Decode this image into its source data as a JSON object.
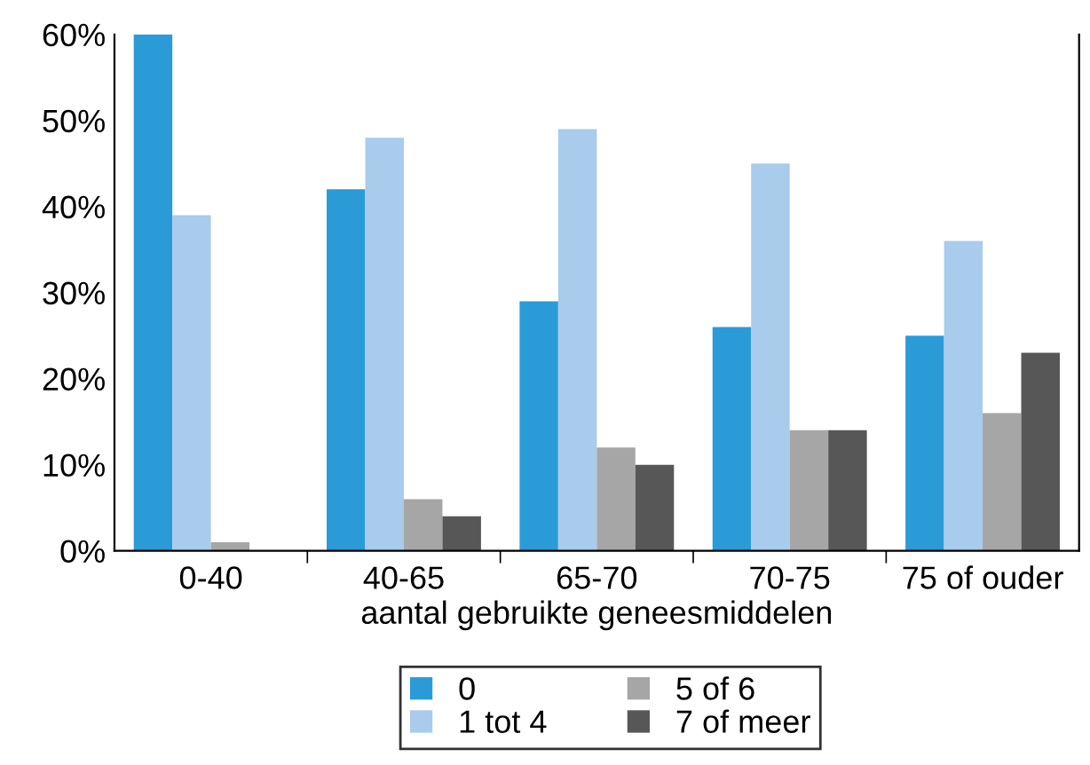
{
  "chart_data": {
    "type": "bar",
    "xlabel": "aantal gebruikte geneesmiddelen",
    "categories": [
      "0-40",
      "40-65",
      "65-70",
      "70-75",
      "75 of ouder"
    ],
    "series": [
      {
        "name": "0",
        "color": "#2b9bd8",
        "values": [
          60,
          42,
          29,
          26,
          25
        ]
      },
      {
        "name": "1 tot 4",
        "color": "#a9cbec",
        "values": [
          39,
          48,
          49,
          45,
          36
        ]
      },
      {
        "name": "5 of 6",
        "color": "#a6a6a6",
        "values": [
          1,
          6,
          12,
          14,
          16
        ]
      },
      {
        "name": "7 of meer",
        "color": "#575757",
        "values": [
          0,
          4,
          10,
          14,
          23
        ]
      }
    ],
    "ylim": [
      0,
      60
    ],
    "yticks": [
      {
        "value": 0,
        "label": "0%"
      },
      {
        "value": 10,
        "label": "10%"
      },
      {
        "value": 20,
        "label": "20%"
      },
      {
        "value": 30,
        "label": "30%"
      },
      {
        "value": 40,
        "label": "40%"
      },
      {
        "value": 50,
        "label": "50%"
      },
      {
        "value": 60,
        "label": "60%"
      }
    ],
    "grid": false,
    "legend": "bottom"
  }
}
